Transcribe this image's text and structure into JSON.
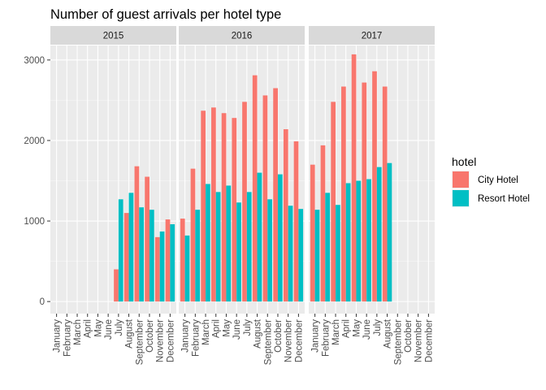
{
  "chart_data": {
    "type": "bar",
    "title": "Number of guest arrivals per hotel type",
    "xlabel": "",
    "ylabel": "",
    "ylim": [
      -150,
      3180
    ],
    "yticks": [
      0,
      1000,
      2000,
      3000
    ],
    "grid": true,
    "legend_position": "right",
    "legend_title": "hotel",
    "months": [
      "January",
      "February",
      "March",
      "April",
      "May",
      "June",
      "July",
      "August",
      "September",
      "October",
      "November",
      "December"
    ],
    "panels": [
      {
        "label": "2015",
        "series": [
          {
            "name": "City Hotel",
            "color": "#F8766D",
            "values": [
              null,
              null,
              null,
              null,
              null,
              null,
              400,
              1100,
              1680,
              1550,
              800,
              1020
            ]
          },
          {
            "name": "Resort Hotel",
            "color": "#00BFC4",
            "values": [
              null,
              null,
              null,
              null,
              null,
              null,
              1270,
              1350,
              1170,
              1140,
              870,
              960
            ]
          }
        ]
      },
      {
        "label": "2016",
        "series": [
          {
            "name": "City Hotel",
            "color": "#F8766D",
            "values": [
              1030,
              1650,
              2370,
              2410,
              2340,
              2280,
              2480,
              2810,
              2560,
              2650,
              2140,
              1990
            ]
          },
          {
            "name": "Resort Hotel",
            "color": "#00BFC4",
            "values": [
              820,
              1140,
              1460,
              1360,
              1440,
              1230,
              1360,
              1600,
              1270,
              1580,
              1190,
              1150
            ]
          }
        ]
      },
      {
        "label": "2017",
        "series": [
          {
            "name": "City Hotel",
            "color": "#F8766D",
            "values": [
              1700,
              1940,
              2480,
              2670,
              3070,
              2720,
              2860,
              2670,
              null,
              null,
              null,
              null
            ]
          },
          {
            "name": "Resort Hotel",
            "color": "#00BFC4",
            "values": [
              1140,
              1350,
              1200,
              1470,
              1500,
              1520,
              1670,
              1720,
              null,
              null,
              null,
              null
            ]
          }
        ]
      }
    ]
  }
}
